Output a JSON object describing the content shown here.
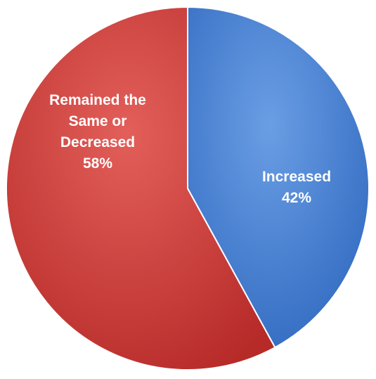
{
  "chart_data": {
    "type": "pie",
    "slices": [
      {
        "label_lines": [
          "Increased",
          "42%"
        ],
        "value": 42,
        "color": "#4a82d4"
      },
      {
        "label_lines": [
          "Remained the",
          "Same or",
          "Decreased",
          "58%"
        ],
        "value": 58,
        "color": "#d23f3c"
      }
    ],
    "start_angle_deg": 0,
    "direction": "clockwise",
    "legend": "none",
    "style": "3d-shaded"
  }
}
